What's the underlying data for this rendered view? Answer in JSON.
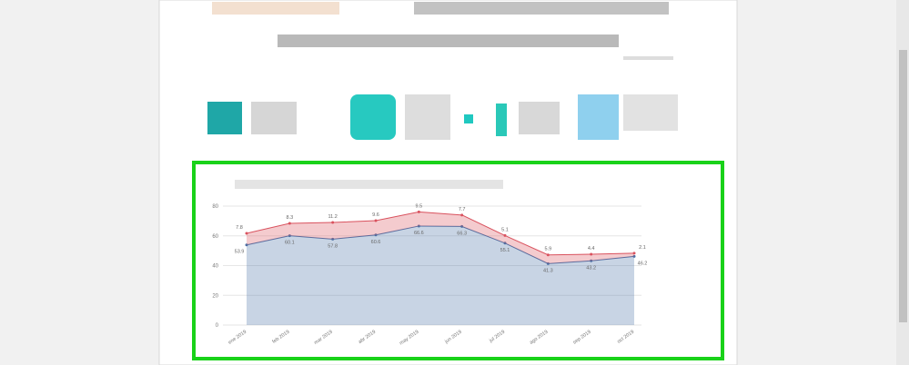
{
  "chart_data": {
    "type": "area",
    "stacked": true,
    "categories": [
      "ene 2019",
      "feb 2019",
      "mar 2019",
      "abr 2019",
      "may 2019",
      "jun 2019",
      "jul 2019",
      "ago 2019",
      "sep 2019",
      "oct 2019"
    ],
    "series": [
      {
        "color": "#4a6fa5",
        "values": [
          53.9,
          60.1,
          57.8,
          60.6,
          66.6,
          66.3,
          55.1,
          41.3,
          43.2,
          46.2
        ]
      },
      {
        "color": "#d9525e",
        "values": [
          7.8,
          8.3,
          11.2,
          9.6,
          9.5,
          7.7,
          5.1,
          5.9,
          4.4,
          2.1
        ]
      }
    ],
    "ylim": [
      0,
      80
    ],
    "yticks": [
      0,
      20,
      40,
      60,
      80
    ],
    "grid": true
  }
}
